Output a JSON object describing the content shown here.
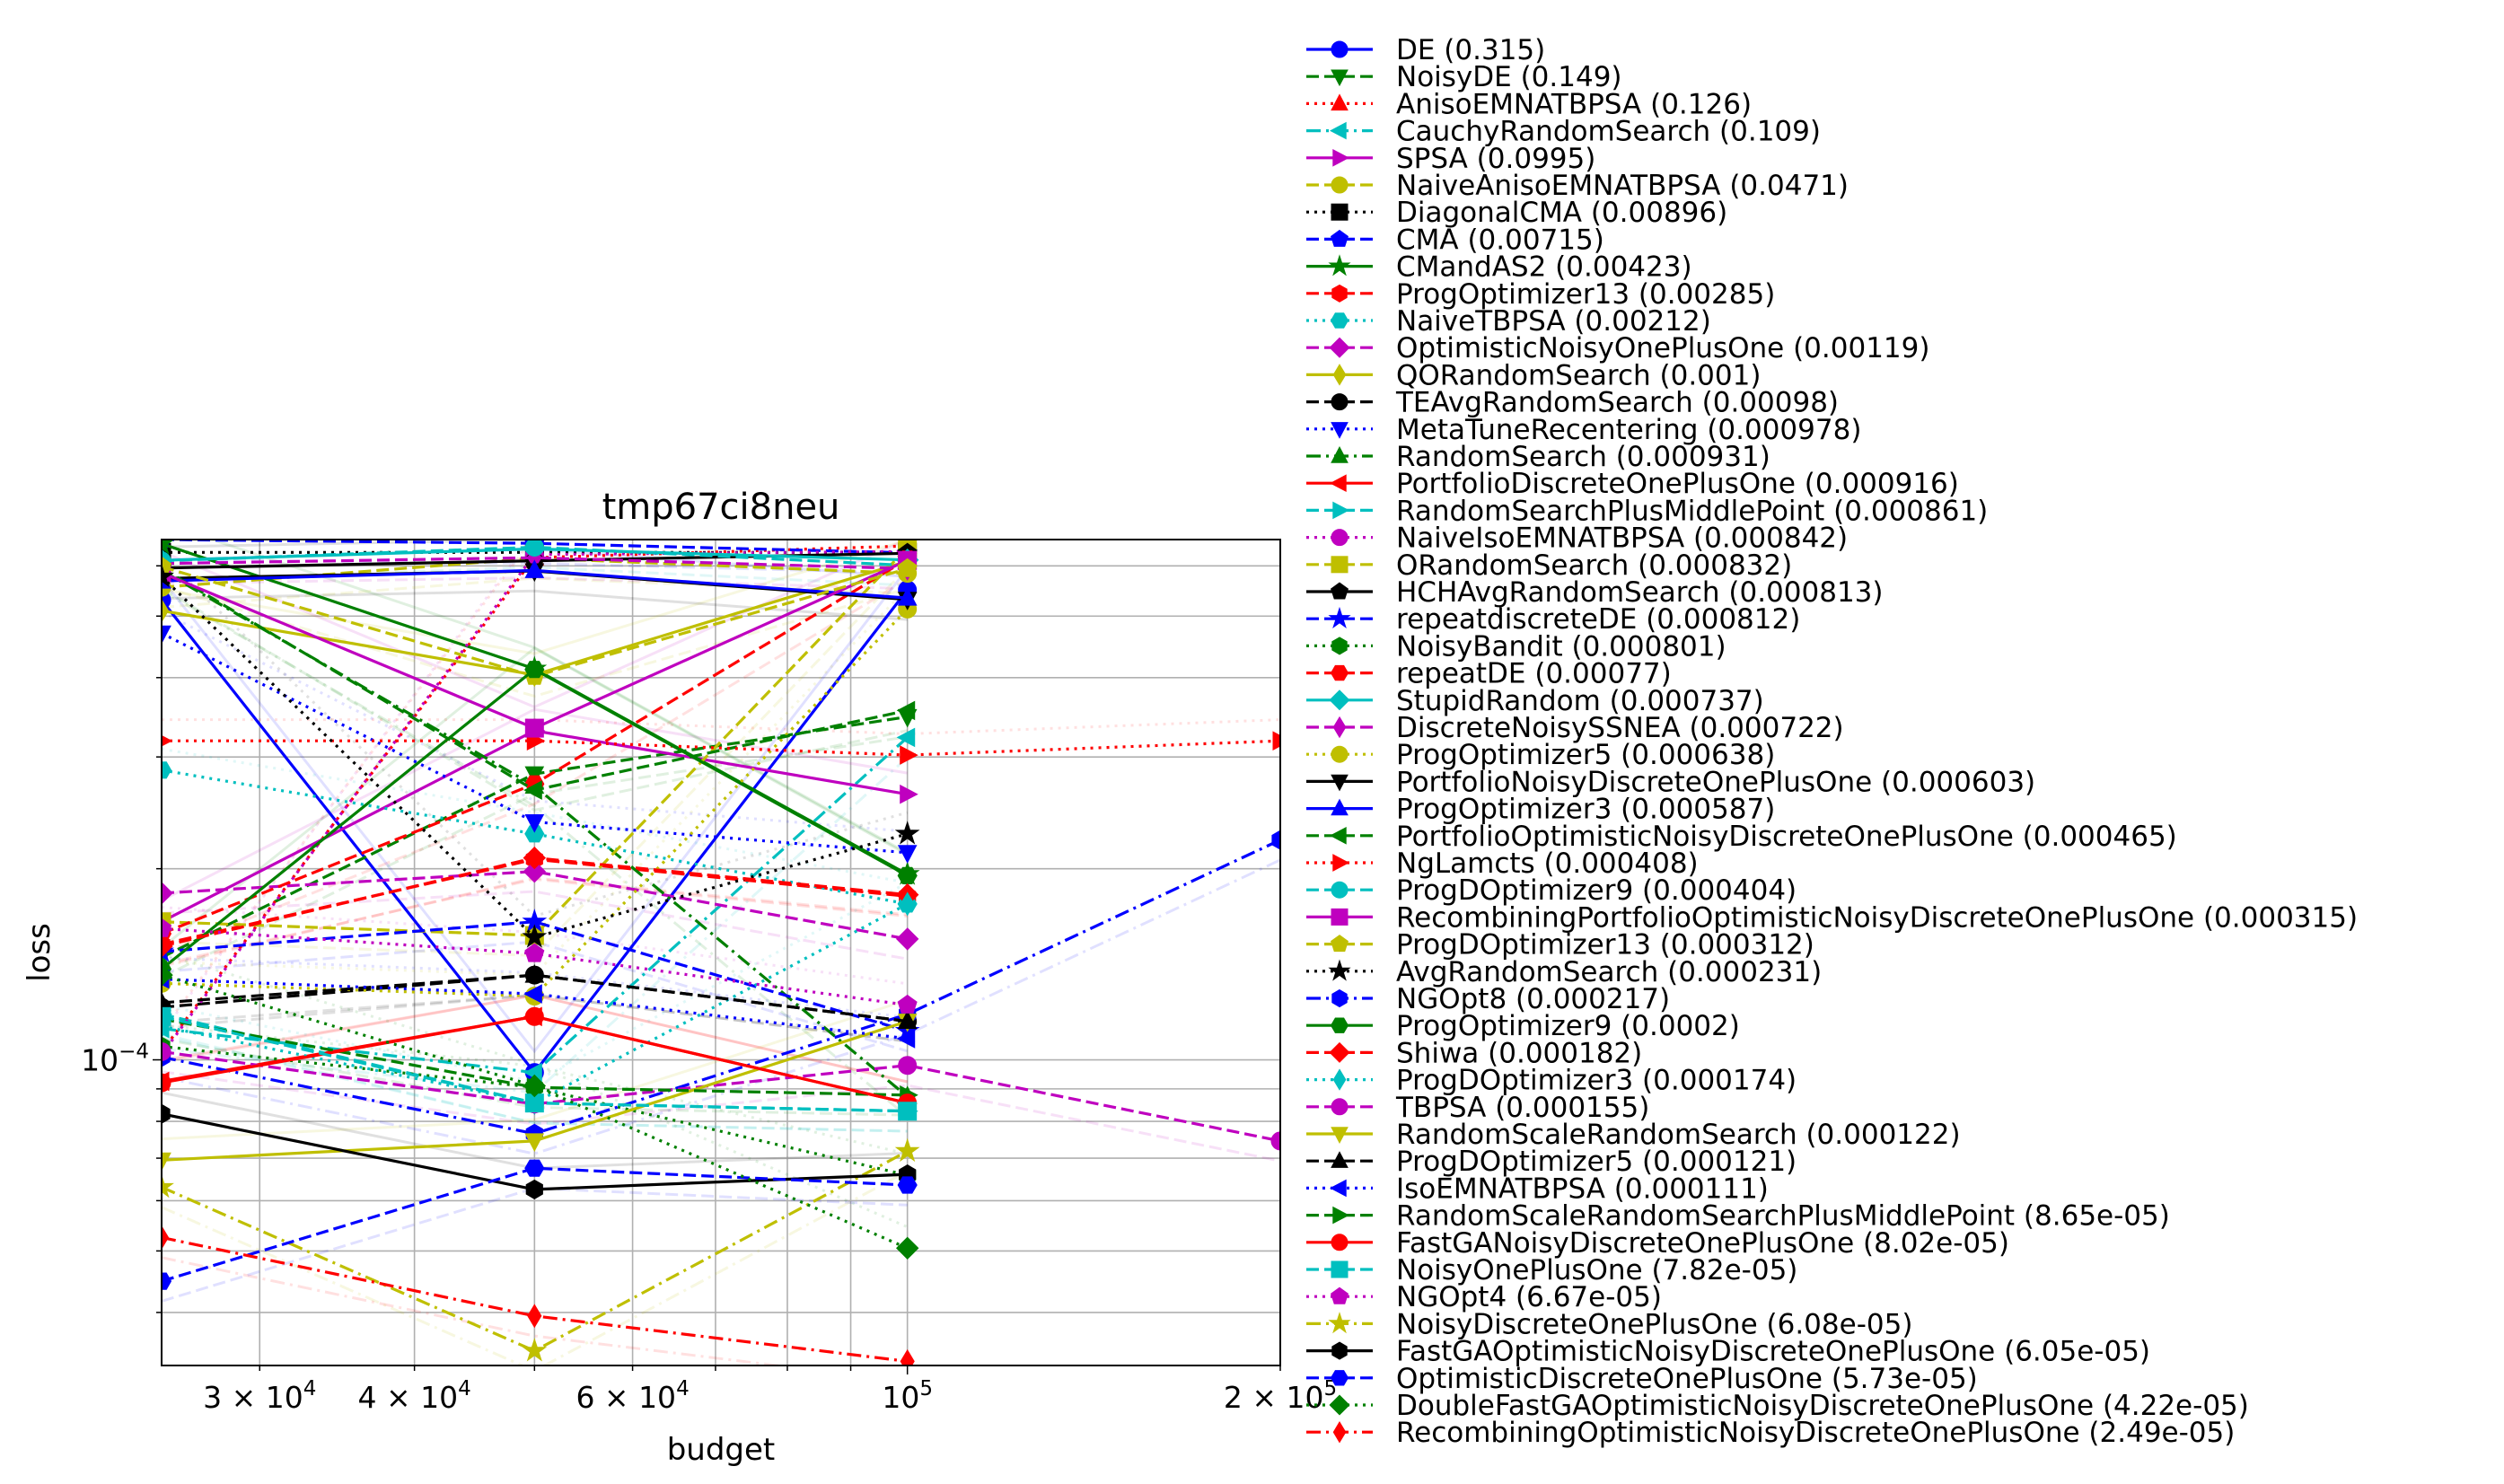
{
  "chart_data": {
    "type": "line",
    "title": "tmp67ci8neu",
    "xlabel": "budget",
    "ylabel": "loss",
    "xscale": "log",
    "yscale": "log",
    "xlim": [
      25000,
      200000
    ],
    "ylim": [
      3.3e-05,
      0.00066
    ],
    "grid": true,
    "legend_position": "outside-right",
    "x_ticks": [
      {
        "value": 30000,
        "label": "3 × 10",
        "exp": "4"
      },
      {
        "value": 40000,
        "label": "4 × 10",
        "exp": "4"
      },
      {
        "value": 60000,
        "label": "6 × 10",
        "exp": "4"
      },
      {
        "value": 100000,
        "label": "10",
        "exp": "5"
      },
      {
        "value": 200000,
        "label": "2 × 10",
        "exp": "5"
      }
    ],
    "y_ticks": [
      {
        "value": 0.0001,
        "label": "10",
        "exp": "−4"
      }
    ],
    "series": [
      {
        "name": "DE (0.315)",
        "color": "#0000ff",
        "dash": "solid",
        "marker": "o",
        "x": [
          25000,
          50000,
          100000
        ],
        "y": [
          0.00053,
          9.55e-05,
          0.00055
        ]
      },
      {
        "name": "NoisyDE (0.149)",
        "color": "#008000",
        "dash": "dashed",
        "marker": "v",
        "x": [
          25000,
          50000,
          100000
        ],
        "y": [
          0.000145,
          0.000282,
          0.000347
        ]
      },
      {
        "name": "AnisoEMNATBPSA (0.126)",
        "color": "#ff0000",
        "dash": "dotted",
        "marker": "^",
        "x": [
          25000,
          50000,
          100000
        ],
        "y": [
          0.000103,
          0.000618,
          0.000645
        ]
      },
      {
        "name": "CauchyRandomSearch (0.109)",
        "color": "#00bfbf",
        "dash": "dashdot",
        "marker": "<",
        "x": [
          25000,
          50000,
          100000
        ],
        "y": [
          0.000112,
          9.55e-05,
          0.000322
        ]
      },
      {
        "name": "SPSA (0.0995)",
        "color": "#bf00bf",
        "dash": "solid",
        "marker": ">",
        "x": [
          25000,
          50000,
          100000
        ],
        "y": [
          0.000165,
          0.00033,
          0.000262
        ]
      },
      {
        "name": "NaiveAnisoEMNATBPSA (0.0471)",
        "color": "#bfbf00",
        "dash": "dashed",
        "marker": "o",
        "x": [
          25000,
          50000,
          100000
        ],
        "y": [
          0.000555,
          0.000617,
          0.000584
        ]
      },
      {
        "name": "DiagonalCMA (0.00896)",
        "color": "#000000",
        "dash": "dotted",
        "marker": "s",
        "x": [
          25000,
          50000,
          100000
        ],
        "y": [
          0.00063,
          0.00063,
          0.00063
        ]
      },
      {
        "name": "CMA (0.00715)",
        "color": "#0000ff",
        "dash": "dashed",
        "marker": "p",
        "x": [
          25000,
          50000,
          100000
        ],
        "y": [
          0.00066,
          0.000651,
          0.000629
        ]
      },
      {
        "name": "CMandAS2 (0.00423)",
        "color": "#008000",
        "dash": "solid",
        "marker": "*",
        "x": [
          25000,
          50000,
          100000
        ],
        "y": [
          0.00065,
          0.000413,
          0.000196
        ]
      },
      {
        "name": "ProgOptimizer13 (0.00285)",
        "color": "#ff0000",
        "dash": "dashed",
        "marker": "h",
        "x": [
          25000,
          50000,
          100000
        ],
        "y": [
          0.000152,
          0.000207,
          0.000181
        ]
      },
      {
        "name": "NaiveTBPSA (0.00212)",
        "color": "#00bfbf",
        "dash": "dotted",
        "marker": "H",
        "x": [
          25000,
          50000,
          100000
        ],
        "y": [
          0.000286,
          0.000227,
          0.000176
        ]
      },
      {
        "name": "OptimisticNoisyOnePlusOne (0.00119)",
        "color": "#bf00bf",
        "dash": "dashed",
        "marker": "D",
        "x": [
          25000,
          50000,
          100000
        ],
        "y": [
          0.000183,
          0.000198,
          0.000155
        ]
      },
      {
        "name": "QORandomSearch (0.001)",
        "color": "#bfbf00",
        "dash": "solid",
        "marker": "d",
        "x": [
          25000,
          50000,
          100000
        ],
        "y": [
          0.00051,
          0.000404,
          0.00061
        ]
      },
      {
        "name": "TEAvgRandomSearch (0.00098)",
        "color": "#000000",
        "dash": "dashed",
        "marker": "o",
        "x": [
          25000,
          50000,
          100000
        ],
        "y": [
          0.000121,
          0.000136,
          0.000115
        ]
      },
      {
        "name": "MetaTuneRecentering (0.000978)",
        "color": "#0000ff",
        "dash": "dotted",
        "marker": "v",
        "x": [
          25000,
          50000,
          100000
        ],
        "y": [
          0.00047,
          0.000237,
          0.000212
        ]
      },
      {
        "name": "RandomSearch (0.000931)",
        "color": "#008000",
        "dash": "dashdot",
        "marker": "^",
        "x": [
          25000,
          50000,
          100000
        ],
        "y": [
          0.00059,
          0.00027,
          8.75e-05
        ]
      },
      {
        "name": "PortfolioDiscreteOnePlusOne (0.000916)",
        "color": "#ff0000",
        "dash": "solid",
        "marker": "<",
        "x": [
          25000,
          50000,
          100000
        ],
        "y": [
          9.25e-05,
          0.000117,
          8.55e-05
        ]
      },
      {
        "name": "RandomSearchPlusMiddlePoint (0.000861)",
        "color": "#00bfbf",
        "dash": "dashed",
        "marker": ">",
        "x": [
          25000,
          50000,
          100000
        ],
        "y": [
          0.000118,
          8.55e-05,
          8.3e-05
        ]
      },
      {
        "name": "NaiveIsoEMNATBPSA (0.000842)",
        "color": "#bf00bf",
        "dash": "dotted",
        "marker": "o",
        "x": [
          25000,
          50000,
          100000
        ],
        "y": [
          0.000102,
          0.000625,
          0.000632
        ]
      },
      {
        "name": "ORandomSearch (0.000832)",
        "color": "#bfbf00",
        "dash": "dashed",
        "marker": "s",
        "x": [
          25000,
          50000,
          100000
        ],
        "y": [
          0.000165,
          0.000157,
          0.000641
        ]
      },
      {
        "name": "HCHAvgRandomSearch (0.000813)",
        "color": "#000000",
        "dash": "solid",
        "marker": "p",
        "x": [
          25000,
          50000,
          100000
        ],
        "y": [
          0.000595,
          0.000611,
          0.000628
        ]
      },
      {
        "name": "repeatdiscreteDE (0.000812)",
        "color": "#0000ff",
        "dash": "dashed",
        "marker": "*",
        "x": [
          25000,
          50000,
          100000
        ],
        "y": [
          0.000148,
          0.000165,
          0.000111
        ]
      },
      {
        "name": "NoisyBandit (0.000801)",
        "color": "#008000",
        "dash": "dotted",
        "marker": "h",
        "x": [
          25000,
          50000,
          100000
        ],
        "y": [
          0.000105,
          9.05e-05,
          6.58e-05
        ]
      },
      {
        "name": "repeatDE (0.00077)",
        "color": "#ff0000",
        "dash": "dashed",
        "marker": "H",
        "x": [
          25000,
          50000,
          100000
        ],
        "y": [
          0.000158,
          0.000272,
          0.000615
        ]
      },
      {
        "name": "StupidRandom (0.000737)",
        "color": "#00bfbf",
        "dash": "solid",
        "marker": "D",
        "x": [
          25000,
          50000,
          100000
        ],
        "y": [
          0.000612,
          0.000638,
          0.000613
        ]
      },
      {
        "name": "DiscreteNoisySSNEA (0.000722)",
        "color": "#bf00bf",
        "dash": "dashed",
        "marker": "d",
        "x": [
          25000,
          50000,
          100000
        ],
        "y": [
          0.000605,
          0.000618,
          0.000594
        ]
      },
      {
        "name": "ProgOptimizer5 (0.000638)",
        "color": "#bfbf00",
        "dash": "dotted",
        "marker": "o",
        "x": [
          25000,
          50000,
          100000
        ],
        "y": [
          0.000132,
          0.000126,
          0.000513
        ]
      },
      {
        "name": "PortfolioNoisyDiscreteOnePlusOne (0.000603)",
        "color": "#000000",
        "dash": "solid",
        "marker": "v",
        "x": [
          25000,
          50000,
          100000
        ],
        "y": [
          0.000573,
          0.000589,
          0.000531
        ]
      },
      {
        "name": "ProgOptimizer3 (0.000587)",
        "color": "#0000ff",
        "dash": "solid",
        "marker": "^",
        "x": [
          25000,
          50000,
          100000
        ],
        "y": [
          0.000568,
          0.00059,
          0.000534
        ]
      },
      {
        "name": "PortfolioOptimisticNoisyDiscreteOnePlusOne (0.000465)",
        "color": "#008000",
        "dash": "dashed",
        "marker": "<",
        "x": [
          25000,
          50000,
          100000
        ],
        "y": [
          0.000595,
          0.000266,
          0.000355
        ]
      },
      {
        "name": "NgLamcts (0.000408)",
        "color": "#ff0000",
        "dash": "dotted",
        "marker": ">",
        "x": [
          25000,
          50000,
          100000,
          200000
        ],
        "y": [
          0.000318,
          0.000318,
          0.000302,
          0.000318
        ]
      },
      {
        "name": "ProgDOptimizer9 (0.000404)",
        "color": "#00bfbf",
        "dash": "dashed",
        "marker": "o",
        "x": [
          25000,
          50000,
          100000
        ],
        "y": [
          0.000611,
          0.000642,
          0.000601
        ]
      },
      {
        "name": "RecombiningPortfolioOptimisticNoisyDiscreteOnePlusOne (0.000315)",
        "color": "#bf00bf",
        "dash": "solid",
        "marker": "s",
        "x": [
          25000,
          50000,
          100000
        ],
        "y": [
          0.000585,
          0.000333,
          0.000612
        ]
      },
      {
        "name": "ProgDOptimizer13 (0.000312)",
        "color": "#bfbf00",
        "dash": "dashed",
        "marker": "p",
        "x": [
          25000,
          50000,
          100000
        ],
        "y": [
          0.000598,
          0.000402,
          0.000594
        ]
      },
      {
        "name": "AvgRandomSearch (0.000231)",
        "color": "#000000",
        "dash": "dotted",
        "marker": "*",
        "x": [
          25000,
          50000,
          100000
        ],
        "y": [
          0.000577,
          0.000156,
          0.000227
        ]
      },
      {
        "name": "NGOpt8 (0.000217)",
        "color": "#0000ff",
        "dash": "dashdot",
        "marker": "h",
        "x": [
          25000,
          50000,
          100000,
          200000
        ],
        "y": [
          0.000101,
          7.65e-05,
          0.000118,
          0.000222
        ]
      },
      {
        "name": "ProgOptimizer9 (0.0002)",
        "color": "#008000",
        "dash": "solid",
        "marker": "H",
        "x": [
          25000,
          50000,
          100000
        ],
        "y": [
          0.000139,
          0.000412,
          0.000195
        ]
      },
      {
        "name": "Shiwa (0.000182)",
        "color": "#ff0000",
        "dash": "dashed",
        "marker": "D",
        "x": [
          25000,
          50000,
          100000
        ],
        "y": [
          0.000151,
          0.000208,
          0.000182
        ]
      },
      {
        "name": "ProgDOptimizer3 (0.000174)",
        "color": "#00bfbf",
        "dash": "dotted",
        "marker": "d",
        "x": [
          25000,
          50000,
          100000
        ],
        "y": [
          0.000113,
          8.55e-05,
          0.000176
        ]
      },
      {
        "name": "TBPSA (0.000155)",
        "color": "#bf00bf",
        "dash": "dashed",
        "marker": "o",
        "x": [
          25000,
          50000,
          100000,
          200000
        ],
        "y": [
          0.000103,
          8.52e-05,
          9.8e-05,
          7.45e-05
        ]
      },
      {
        "name": "RandomScaleRandomSearch (0.000122)",
        "color": "#bfbf00",
        "dash": "solid",
        "marker": "v",
        "x": [
          25000,
          50000,
          100000
        ],
        "y": [
          6.95e-05,
          7.45e-05,
          0.000115
        ]
      },
      {
        "name": "ProgDOptimizer5 (0.000121)",
        "color": "#000000",
        "dash": "dashed",
        "marker": "^",
        "x": [
          25000,
          50000,
          100000
        ],
        "y": [
          0.000123,
          0.000136,
          0.000115
        ]
      },
      {
        "name": "IsoEMNATBPSA (0.000111)",
        "color": "#0000ff",
        "dash": "dotted",
        "marker": "<",
        "x": [
          25000,
          50000,
          100000
        ],
        "y": [
          0.000134,
          0.000127,
          0.000108
        ]
      },
      {
        "name": "RandomScaleRandomSearchPlusMiddlePoint (8.65e-05)",
        "color": "#008000",
        "dash": "dashed",
        "marker": ">",
        "x": [
          25000,
          50000,
          100000
        ],
        "y": [
          0.000116,
          9.05e-05,
          8.8e-05
        ]
      },
      {
        "name": "FastGANoisyDiscreteOnePlusOne (8.02e-05)",
        "color": "#ff0000",
        "dash": "solid",
        "marker": "o",
        "x": [
          25000,
          50000,
          100000
        ],
        "y": [
          9.2e-05,
          0.000117,
          8.55e-05
        ]
      },
      {
        "name": "NoisyOnePlusOne (7.82e-05)",
        "color": "#00bfbf",
        "dash": "dashed",
        "marker": "s",
        "x": [
          25000,
          50000,
          100000
        ],
        "y": [
          0.000117,
          8.55e-05,
          8.3e-05
        ]
      },
      {
        "name": "NGOpt4 (6.67e-05)",
        "color": "#bf00bf",
        "dash": "dotted",
        "marker": "p",
        "x": [
          25000,
          50000,
          100000
        ],
        "y": [
          0.000161,
          0.000147,
          0.000122
        ]
      },
      {
        "name": "NoisyDiscreteOnePlusOne (6.08e-05)",
        "color": "#bfbf00",
        "dash": "dashdot",
        "marker": "*",
        "x": [
          25000,
          50000,
          100000
        ],
        "y": [
          6.3e-05,
          3.48e-05,
          7.18e-05
        ]
      },
      {
        "name": "FastGAOptimisticNoisyDiscreteOnePlusOne (6.05e-05)",
        "color": "#000000",
        "dash": "solid",
        "marker": "h",
        "x": [
          25000,
          50000,
          100000
        ],
        "y": [
          8.22e-05,
          6.25e-05,
          6.6e-05
        ]
      },
      {
        "name": "OptimisticDiscreteOnePlusOne (5.73e-05)",
        "color": "#0000ff",
        "dash": "dashed",
        "marker": "H",
        "x": [
          25000,
          50000,
          100000
        ],
        "y": [
          4.48e-05,
          6.75e-05,
          6.35e-05
        ]
      },
      {
        "name": "DoubleFastGAOptimisticNoisyDiscreteOnePlusOne (4.22e-05)",
        "color": "#008000",
        "dash": "dotted",
        "marker": "D",
        "x": [
          25000,
          50000,
          100000
        ],
        "y": [
          0.000136,
          9.1e-05,
          5.05e-05
        ]
      },
      {
        "name": "RecombiningOptimisticNoisyDiscreteOnePlusOne (2.49e-05)",
        "color": "#ff0000",
        "dash": "dashdot",
        "marker": "d",
        "x": [
          25000,
          50000,
          100000
        ],
        "y": [
          5.25e-05,
          3.95e-05,
          3.35e-05
        ]
      }
    ]
  }
}
